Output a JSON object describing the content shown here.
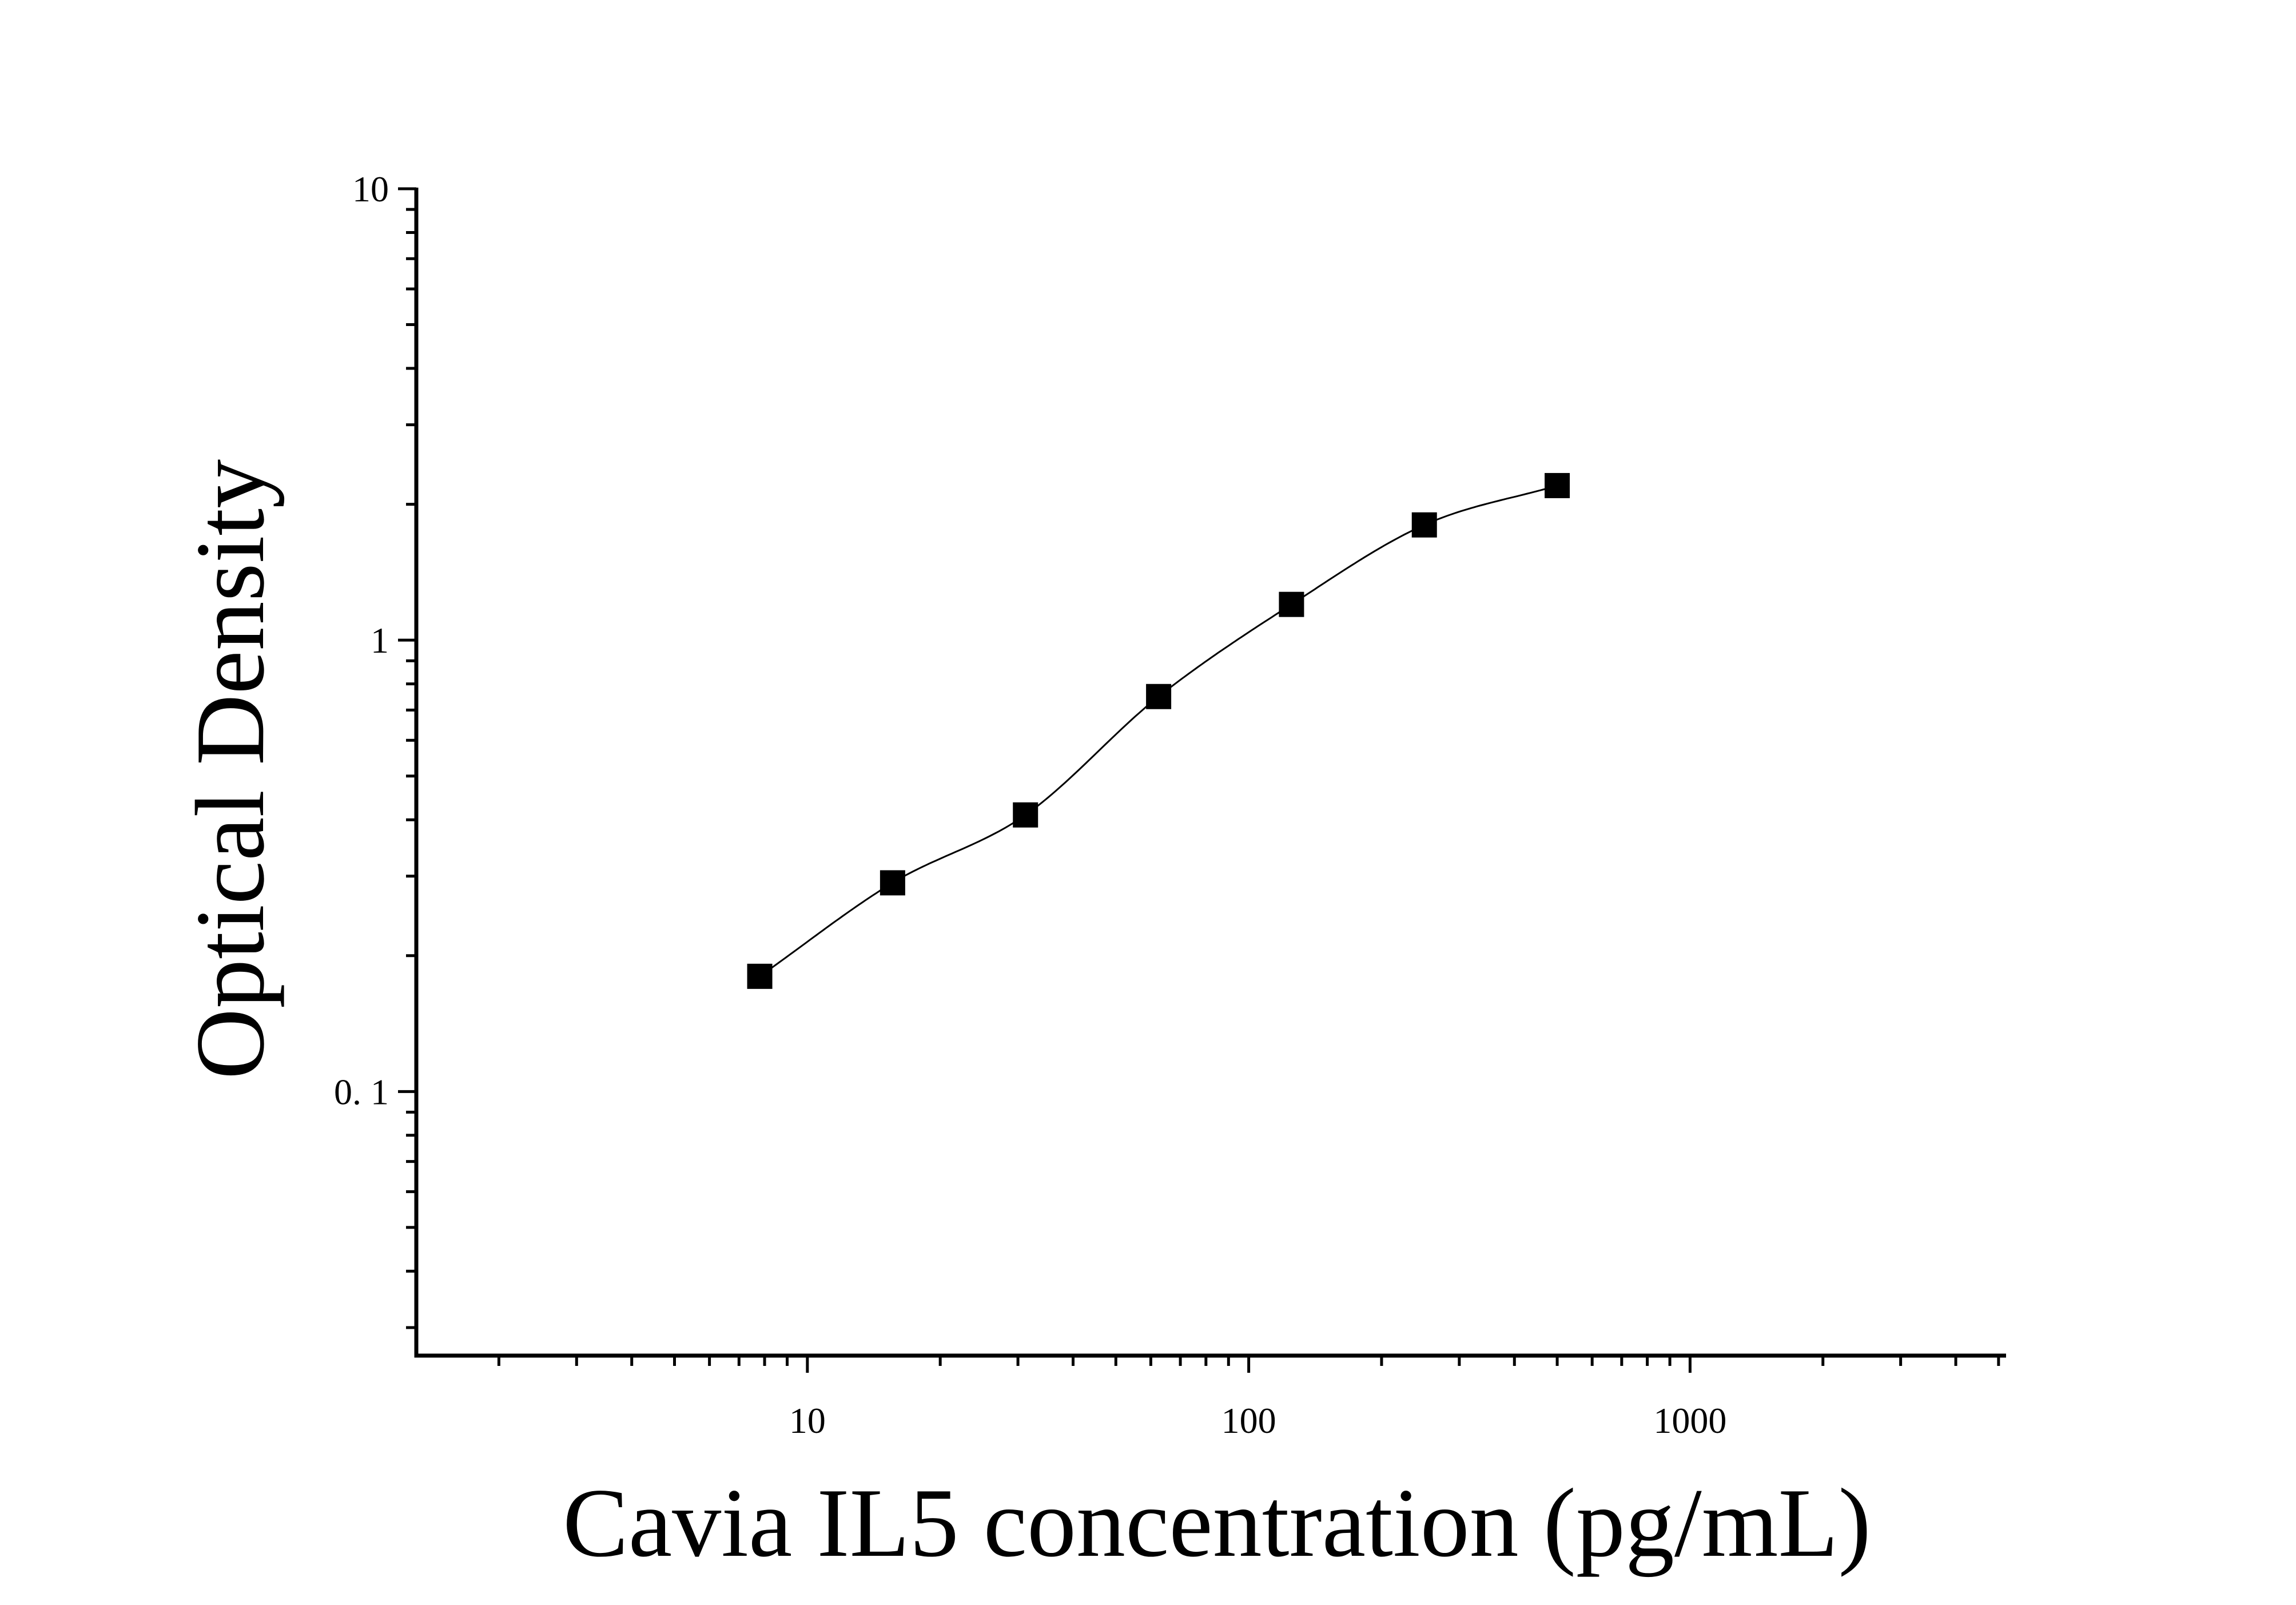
{
  "chart_data": {
    "type": "scatter",
    "title": "",
    "xlabel": "Cavia IL5 concentration (pg/mL)",
    "ylabel": "Optical Density",
    "xscale": "log",
    "yscale": "log",
    "xlim": [
      1.3,
      5200
    ],
    "ylim": [
      0.026,
      10
    ],
    "x_ticks": [
      {
        "value": 10,
        "label": "10"
      },
      {
        "value": 100,
        "label": "100"
      },
      {
        "value": 1000,
        "label": "1000"
      }
    ],
    "y_ticks": [
      {
        "value": 0.1,
        "label": "0. 1"
      },
      {
        "value": 1,
        "label": "1"
      },
      {
        "value": 10,
        "label": "10"
      }
    ],
    "grid": false,
    "legend": "none",
    "series": [
      {
        "marker": "square",
        "color": "#000000",
        "x": [
          7.8,
          15.6,
          31.2,
          62.5,
          125,
          250,
          500
        ],
        "y": [
          0.18,
          0.29,
          0.41,
          0.75,
          1.2,
          1.8,
          2.2
        ]
      }
    ],
    "fit_curve": {
      "type": "4PL",
      "color": "#000000",
      "x_range": [
        7.8,
        500
      ]
    }
  }
}
